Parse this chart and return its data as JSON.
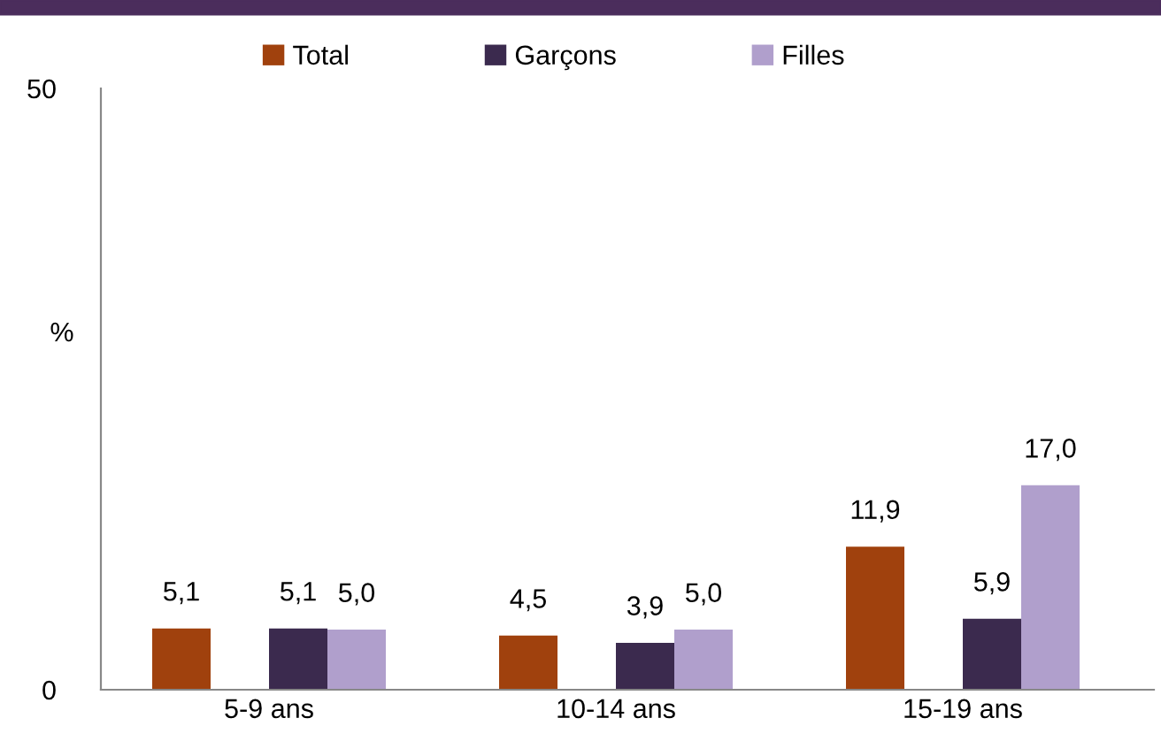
{
  "chart_data": {
    "type": "bar",
    "ylabel": "%",
    "categories": [
      "5-9 ans",
      "10-14 ans",
      "15-19 ans"
    ],
    "series": [
      {
        "name": "Total",
        "color": "#a0410d",
        "values": [
          5.1,
          4.5,
          11.9
        ],
        "value_labels": [
          "5,1",
          "4,5",
          "11,9"
        ]
      },
      {
        "name": "Garçons",
        "color": "#3b2a4e",
        "values": [
          5.1,
          3.9,
          5.9
        ],
        "value_labels": [
          "5,1",
          "3,9",
          "5,9"
        ]
      },
      {
        "name": "Filles",
        "color": "#b09fcc",
        "values": [
          5.0,
          5.0,
          17.0
        ],
        "value_labels": [
          "5,0",
          "5,0",
          "17,0"
        ]
      }
    ],
    "ylim": [
      0,
      50
    ],
    "yticks": [
      0,
      50
    ],
    "grid": false,
    "legend": "top"
  }
}
